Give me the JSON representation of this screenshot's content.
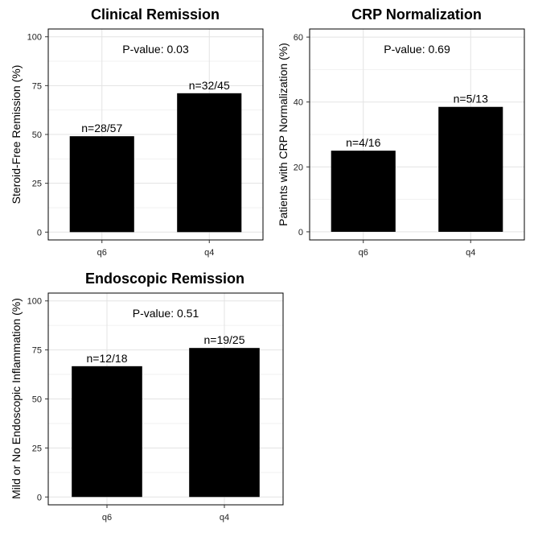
{
  "chart_data": [
    {
      "type": "bar",
      "title": "Clinical Remission",
      "ylabel": "Steroid-Free Remission (%)",
      "xlabel": "",
      "categories": [
        "q6",
        "q4"
      ],
      "values": [
        49.1,
        71.1
      ],
      "bar_labels": [
        "n=28/57",
        "n=32/45"
      ],
      "annotation": "P-value: 0.03",
      "ylim": [
        -4,
        104
      ],
      "yticks": [
        0,
        25,
        50,
        75,
        100
      ],
      "ytick_labels": [
        "0",
        "25",
        "50",
        "75",
        "100"
      ],
      "grid": true,
      "bar_color": "#000000"
    },
    {
      "type": "bar",
      "title": "CRP Normalization",
      "ylabel": "Patients with CRP Normalization (%)",
      "xlabel": "",
      "categories": [
        "q6",
        "q4"
      ],
      "values": [
        25.0,
        38.5
      ],
      "bar_labels": [
        "n=4/16",
        "n=5/13"
      ],
      "annotation": "P-value: 0.69",
      "ylim": [
        -2.5,
        62.5
      ],
      "yticks": [
        0,
        20,
        40,
        60
      ],
      "ytick_labels": [
        "0",
        "20",
        "40",
        "60"
      ],
      "grid": true,
      "bar_color": "#000000"
    },
    {
      "type": "bar",
      "title": "Endoscopic Remission",
      "ylabel": "Mild or No Endoscopic Inflammation (%)",
      "xlabel": "",
      "categories": [
        "q6",
        "q4"
      ],
      "values": [
        66.7,
        76.0
      ],
      "bar_labels": [
        "n=12/18",
        "n=19/25"
      ],
      "annotation": "P-value: 0.51",
      "ylim": [
        -4,
        104
      ],
      "yticks": [
        0,
        25,
        50,
        75,
        100
      ],
      "ytick_labels": [
        "0",
        "25",
        "50",
        "75",
        "100"
      ],
      "grid": true,
      "bar_color": "#000000"
    }
  ]
}
